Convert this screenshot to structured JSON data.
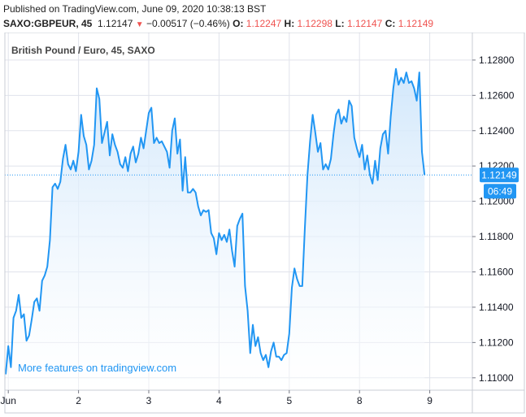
{
  "header": {
    "published": "Published on TradingView.com, June 09, 2020 10:38:13 BST",
    "symbol": "SAXO:GBPEUR, 45",
    "last": "1.12147",
    "change_arrow": "▼",
    "change": "−0.00517 (−0.46%)",
    "open_label": "O:",
    "open": "1.12247",
    "high_label": "H:",
    "high": "1.12298",
    "low_label": "L:",
    "low": "1.12147",
    "close_label": "C:",
    "close": "1.12149"
  },
  "chart_title": "British Pound / Euro, 45, SAXO",
  "watermark": "More features on tradingview.com",
  "price_tag": {
    "price": "1.12149",
    "countdown": "06:49",
    "value": 1.12149
  },
  "colors": {
    "line": "#2196f3",
    "area_top": "#cfe6fb",
    "area_bottom": "#ffffff",
    "down": "#ef5350",
    "tag": "#2196f3",
    "grid": "#e0e3eb",
    "axis_text": "#131722",
    "watermark": "#2196f3"
  },
  "chart_data": {
    "type": "area",
    "title": "British Pound / Euro, 45, SAXO",
    "xlabel": "",
    "ylabel": "",
    "ylim": [
      1.1093,
      1.1291
    ],
    "y_ticks": [
      "1.11000",
      "1.11200",
      "1.11400",
      "1.11600",
      "1.11800",
      "1.12000",
      "1.12200",
      "1.12400",
      "1.12600",
      "1.12800"
    ],
    "y_tick_values": [
      1.11,
      1.112,
      1.114,
      1.116,
      1.118,
      1.12,
      1.122,
      1.124,
      1.126,
      1.128
    ],
    "x_ticks": [
      {
        "label": "Jun",
        "index": 1
      },
      {
        "label": "2",
        "index": 28
      },
      {
        "label": "3",
        "index": 55
      },
      {
        "label": "4",
        "index": 82
      },
      {
        "label": "5",
        "index": 109
      },
      {
        "label": "8",
        "index": 136
      },
      {
        "label": "9",
        "index": 163
      }
    ],
    "grid": true,
    "series": [
      {
        "values": [
          1.1102,
          1.1118,
          1.1106,
          1.1134,
          1.1138,
          1.1147,
          1.1134,
          1.1136,
          1.1121,
          1.1124,
          1.1133,
          1.1143,
          1.1145,
          1.1138,
          1.1155,
          1.1158,
          1.1163,
          1.1178,
          1.1208,
          1.121,
          1.1207,
          1.1211,
          1.1224,
          1.1232,
          1.1221,
          1.1218,
          1.1223,
          1.1217,
          1.1228,
          1.1249,
          1.1237,
          1.1232,
          1.1218,
          1.1223,
          1.1232,
          1.1264,
          1.1258,
          1.1233,
          1.1239,
          1.1245,
          1.1226,
          1.1238,
          1.1232,
          1.1228,
          1.1221,
          1.1219,
          1.1225,
          1.1217,
          1.1227,
          1.1231,
          1.1222,
          1.1227,
          1.1236,
          1.123,
          1.124,
          1.125,
          1.1253,
          1.1233,
          1.1236,
          1.1233,
          1.1234,
          1.1231,
          1.1228,
          1.1219,
          1.124,
          1.1247,
          1.1227,
          1.1235,
          1.1206,
          1.1225,
          1.1205,
          1.1205,
          1.1207,
          1.1205,
          1.1197,
          1.1192,
          1.1195,
          1.1194,
          1.1195,
          1.1182,
          1.1179,
          1.117,
          1.1182,
          1.1178,
          1.1181,
          1.1177,
          1.1184,
          1.1172,
          1.1163,
          1.1186,
          1.119,
          1.1193,
          1.1152,
          1.1138,
          1.1114,
          1.113,
          1.1118,
          1.1123,
          1.1114,
          1.111,
          1.1113,
          1.1106,
          1.1115,
          1.112,
          1.1112,
          1.1112,
          1.111,
          1.1113,
          1.1114,
          1.1125,
          1.1151,
          1.1162,
          1.1156,
          1.1152,
          1.1152,
          1.1185,
          1.1215,
          1.1234,
          1.1249,
          1.1239,
          1.1228,
          1.1233,
          1.1218,
          1.1221,
          1.1218,
          1.1224,
          1.1238,
          1.1249,
          1.1252,
          1.1244,
          1.1248,
          1.1245,
          1.1257,
          1.1254,
          1.1236,
          1.123,
          1.1225,
          1.1232,
          1.1218,
          1.1226,
          1.1215,
          1.121,
          1.1223,
          1.1212,
          1.123,
          1.1238,
          1.124,
          1.1227,
          1.1248,
          1.1264,
          1.1275,
          1.1266,
          1.127,
          1.1267,
          1.1273,
          1.1267,
          1.1268,
          1.1264,
          1.1257,
          1.1273,
          1.1228,
          1.1215
        ]
      }
    ]
  }
}
